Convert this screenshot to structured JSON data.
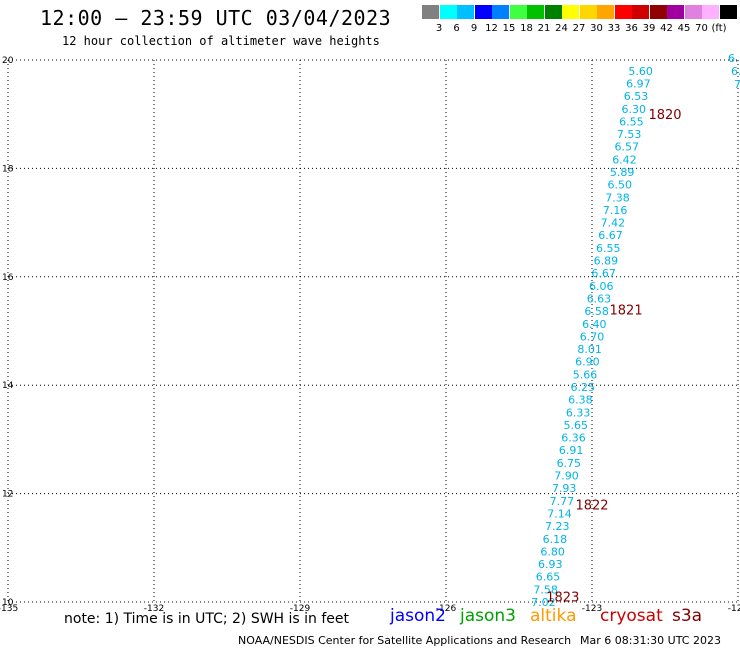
{
  "header": {
    "title": "12:00 – 23:59 UTC 03/04/2023",
    "subtitle": "12 hour collection of altimeter wave heights"
  },
  "scale": {
    "unit": "(ft)",
    "colors": [
      "#808080",
      "#00ffff",
      "#00bfff",
      "#0000ff",
      "#0080ff",
      "#40ff40",
      "#00c000",
      "#008000",
      "#ffff00",
      "#ffd700",
      "#ffa500",
      "#ff0000",
      "#d00000",
      "#900000",
      "#a000a0",
      "#e080e0",
      "#ffb0ff",
      "#000000"
    ],
    "labels": [
      "3",
      "6",
      "9",
      "12",
      "15",
      "18",
      "21",
      "24",
      "27",
      "30",
      "33",
      "36",
      "39",
      "42",
      "45",
      "70"
    ]
  },
  "axes": {
    "x_ticks": [
      "-135",
      "-132",
      "-129",
      "-126",
      "-123",
      "-120"
    ],
    "y_ticks": [
      "10",
      "12",
      "14",
      "16",
      "18",
      "20"
    ],
    "lon_range": [
      -135,
      -120
    ],
    "lat_range": [
      10,
      20
    ]
  },
  "track": {
    "color": "#00b4e6",
    "heights": [
      "5.60",
      "6.97",
      "6.53",
      "6.30",
      "6.55",
      "7.53",
      "6.57",
      "6.42",
      "5.89",
      "6.50",
      "7.38",
      "7.16",
      "7.42",
      "6.67",
      "6.55",
      "6.89",
      "6.67",
      "6.06",
      "6.63",
      "6.58",
      "6.40",
      "6.70",
      "8.01",
      "6.90",
      "5.66",
      "6.25",
      "6.38",
      "6.33",
      "5.65",
      "6.36",
      "6.91",
      "6.75",
      "7.90",
      "7.93",
      "7.77",
      "7.14",
      "7.23",
      "6.18",
      "6.80",
      "6.93",
      "6.65",
      "7.58",
      "7.02"
    ],
    "start": {
      "lon": -122.0,
      "lat": 19.8
    },
    "end": {
      "lon": -124.0,
      "lat": 10.0
    },
    "times": [
      {
        "label": "1820",
        "lon": -121.5,
        "lat": 19.0
      },
      {
        "label": "1821",
        "lon": -122.3,
        "lat": 15.4
      },
      {
        "label": "1822",
        "lon": -123.0,
        "lat": 11.8
      },
      {
        "label": "1823",
        "lon": -123.6,
        "lat": 10.1
      }
    ],
    "edge_labels": [
      "6.",
      "6.",
      "7"
    ],
    "time_color": "#800000"
  },
  "footer": {
    "note": "note: 1) Time is in UTC; 2) SWH is in feet",
    "satellites": [
      {
        "name": "jason2",
        "color": "#0000ff"
      },
      {
        "name": "jason3",
        "color": "#00a000"
      },
      {
        "name": "altika",
        "color": "#ff9900"
      },
      {
        "name": "cryosat",
        "color": "#cc0000"
      },
      {
        "name": "s3a",
        "color": "#800000"
      }
    ],
    "credit": "NOAA/NESDIS Center for Satellite Applications and Research",
    "timestamp": "Mar  6 08:31:30 UTC 2023"
  }
}
